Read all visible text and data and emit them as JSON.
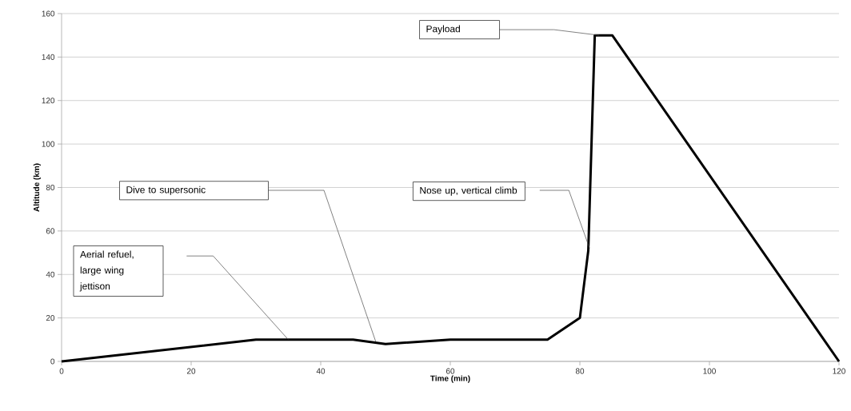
{
  "chart_data": {
    "type": "line",
    "xlabel": "Time (min)",
    "ylabel": "Altitude (km)",
    "x": [
      0,
      30,
      45,
      50,
      60,
      75,
      80,
      81.3,
      82.3,
      85,
      120
    ],
    "series": [
      {
        "color": "#000000",
        "values": [
          0,
          10,
          10,
          8,
          10,
          10,
          20,
          51,
          150,
          150,
          0
        ]
      }
    ],
    "xlim": [
      0,
      120
    ],
    "ylim": [
      0,
      160
    ],
    "xticks": [
      0,
      20,
      40,
      60,
      80,
      100,
      120
    ],
    "yticks": [
      0,
      20,
      40,
      60,
      80,
      100,
      120,
      140,
      160
    ],
    "grid": "y",
    "marker": "none",
    "line_style": "solid",
    "annotations": [
      "Payload",
      "Dive to supersonic",
      "Nose up, vertical climb",
      "Aerial refuel, large wing jettison"
    ]
  }
}
